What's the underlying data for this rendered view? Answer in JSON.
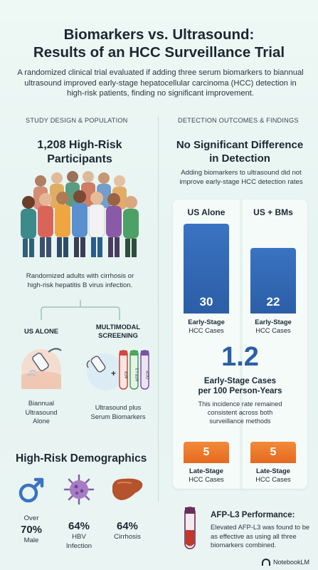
{
  "header": {
    "title_line1": "Biomarkers vs. Ultrasound:",
    "title_line2": "Results of an HCC Surveillance Trial",
    "intro": "A randomized clinical trial evaluated if adding three serum biomarkers to biannual ultrasound improved early-stage hepatocellular carcinoma (HCC) detection in high-risk patients, finding no significant improvement."
  },
  "left": {
    "section_title": "STUDY DESIGN & POPULATION",
    "participants_line1": "1,208 High-Risk",
    "participants_line2": "Participants",
    "crowd_caption_line1": "Randomized adults with cirrhosis or",
    "crowd_caption_line2": "high-risk hepatitis B virus infection.",
    "method_a": {
      "title": "US ALONE",
      "caption_line1": "Biannual",
      "caption_line2": "Ultrasound",
      "caption_line3": "Alone"
    },
    "method_b": {
      "title_line1": "MULTIMODAL",
      "title_line2": "SCREENING",
      "caption_line1": "Ultrasound plus",
      "caption_line2": "Serum Biomarkers",
      "tube_labels": [
        "AFP",
        "AFP-L3",
        "DCP"
      ]
    },
    "demographics": {
      "title": "High-Risk Demographics",
      "items": [
        {
          "prefix": "Over",
          "value": "70%",
          "label": "Male",
          "icon": "male-symbol-icon",
          "color": "#3a73c2"
        },
        {
          "prefix": "",
          "value": "64%",
          "label_line1": "HBV",
          "label_line2": "Infection",
          "icon": "virus-icon",
          "color": "#8a5aa8"
        },
        {
          "prefix": "",
          "value": "64%",
          "label": "Cirrhosis",
          "icon": "liver-icon",
          "color": "#b5532c"
        }
      ]
    }
  },
  "right": {
    "section_title": "DETECTION OUTCOMES & FINDINGS",
    "heading_line1": "No Significant Difference",
    "heading_line2": "in Detection",
    "sub_line1": "Adding biomarkers to ultrasound did not",
    "sub_line2": "improve early-stage HCC detection rates",
    "chart_data": {
      "type": "bar",
      "categories": [
        "US Alone",
        "US + BMs"
      ],
      "series": [
        {
          "values": [
            30,
            22
          ]
        },
        {
          "values": [
            5,
            5
          ]
        }
      ],
      "early_label_line1": "Early-Stage",
      "early_label_line2": "HCC Cases",
      "late_label_line1": "Late-Stage",
      "late_label_line2": "HCC Cases"
    },
    "rate_value": "1.2",
    "rate_title_line1": "Early-Stage Cases",
    "rate_title_line2": "per 100 Person-Years",
    "rate_caption_line1": "This incidence rate remained",
    "rate_caption_line2": "consistent across both",
    "rate_caption_line3": "surveillance methods",
    "afp_title": "AFP-L3 Performance:",
    "afp_text": "Elevated AFP-L3 was found to be as effective as using all three biomarkers combined."
  },
  "footer": {
    "brand": "NotebookLM"
  },
  "colors": {
    "blue": "#2b5ea6",
    "orange": "#e56a1f",
    "background": "#eef8f5"
  }
}
